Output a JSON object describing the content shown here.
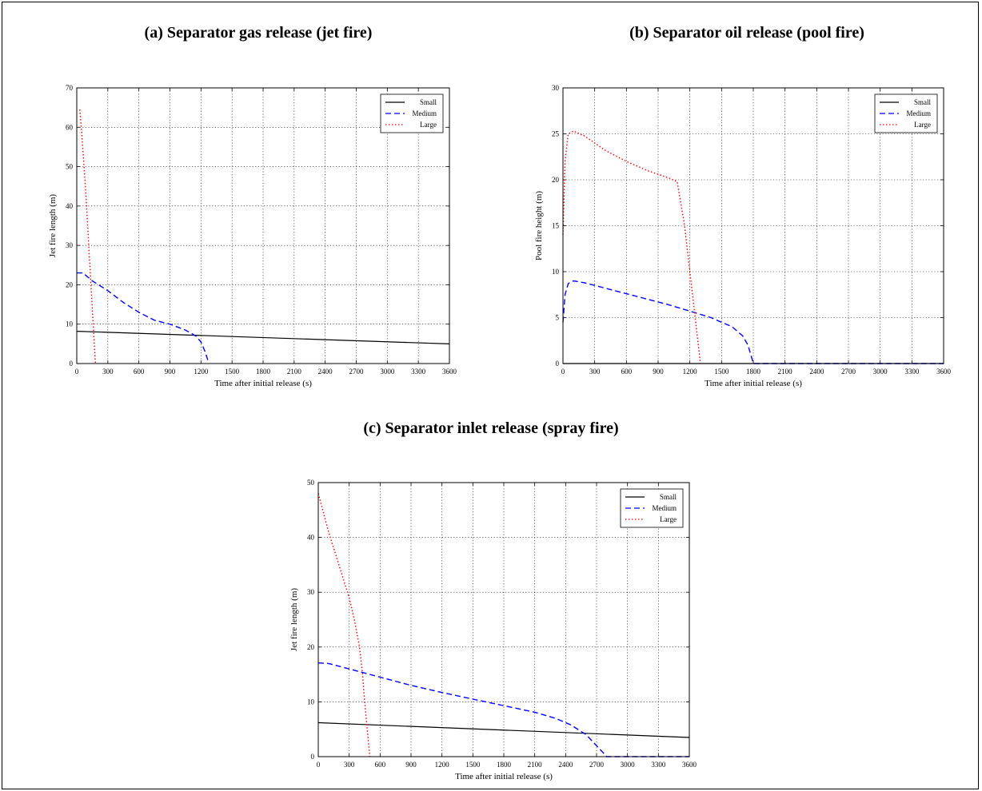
{
  "panels": [
    {
      "title": "(a)  Separator gas release (jet fire)"
    },
    {
      "title": "(b)  Separator oil release (pool fire)"
    },
    {
      "title": "(c)  Separator inlet release (spray fire)"
    }
  ],
  "chart_data": [
    {
      "type": "line",
      "xlabel": "Time after initial release (s)",
      "ylabel": "Jet fire length (m)",
      "xlim": [
        0,
        3600
      ],
      "ylim": [
        0,
        70
      ],
      "xticks": [
        0,
        300,
        600,
        900,
        1200,
        1500,
        1800,
        2100,
        2400,
        2700,
        3000,
        3300,
        3600
      ],
      "yticks": [
        0,
        10,
        20,
        30,
        40,
        50,
        60,
        70
      ],
      "grid": true,
      "legend": "top-right",
      "series": [
        {
          "name": "Small",
          "color": "#000000",
          "style": "solid",
          "x": [
            0,
            3600
          ],
          "y": [
            8.2,
            5.0
          ]
        },
        {
          "name": "Medium",
          "color": "#0000ff",
          "style": "dashed",
          "x": [
            0,
            60,
            150,
            300,
            450,
            600,
            750,
            900,
            1050,
            1150,
            1200,
            1240,
            1270
          ],
          "y": [
            23,
            23,
            21,
            18.5,
            15.5,
            13,
            11,
            10,
            8.5,
            7,
            5.5,
            3,
            0.5
          ]
        },
        {
          "name": "Large",
          "color": "#ff0000",
          "style": "dotted",
          "x": [
            30,
            60,
            90,
            120,
            150,
            180
          ],
          "y": [
            64.5,
            54,
            42,
            28,
            14,
            0
          ]
        }
      ]
    },
    {
      "type": "line",
      "xlabel": "Time after initial release (s)",
      "ylabel": "Pool fire height (m)",
      "xlim": [
        0,
        3600
      ],
      "ylim": [
        0,
        30
      ],
      "xticks": [
        0,
        300,
        600,
        900,
        1200,
        1500,
        1800,
        2100,
        2400,
        2700,
        3000,
        3300,
        3600
      ],
      "yticks": [
        0,
        5,
        10,
        15,
        20,
        25,
        30
      ],
      "grid": true,
      "legend": "top-right",
      "series": [
        {
          "name": "Small",
          "color": "#000000",
          "style": "solid",
          "x": [
            0,
            3600
          ],
          "y": [
            0,
            0
          ]
        },
        {
          "name": "Medium",
          "color": "#0000ff",
          "style": "dashed",
          "x": [
            0,
            20,
            50,
            100,
            200,
            400,
            600,
            800,
            1000,
            1200,
            1400,
            1500,
            1600,
            1700,
            1750,
            1780,
            1800,
            3600
          ],
          "y": [
            4.5,
            7.5,
            8.7,
            9.0,
            8.8,
            8.2,
            7.6,
            7.0,
            6.4,
            5.7,
            5.0,
            4.5,
            4.0,
            3.0,
            2.0,
            0.8,
            0,
            0
          ]
        },
        {
          "name": "Large",
          "color": "#ff0000",
          "style": "dotted",
          "x": [
            0,
            20,
            50,
            100,
            200,
            400,
            600,
            800,
            1000,
            1080,
            1150,
            1200,
            1250,
            1300
          ],
          "y": [
            14,
            22,
            25,
            25.3,
            24.8,
            23.2,
            22.0,
            21.0,
            20.2,
            19.8,
            15,
            10,
            5,
            0
          ]
        }
      ]
    },
    {
      "type": "line",
      "xlabel": "Time after initial release (s)",
      "ylabel": "Jet fire length (m)",
      "xlim": [
        0,
        3600
      ],
      "ylim": [
        0,
        50
      ],
      "xticks": [
        0,
        300,
        600,
        900,
        1200,
        1500,
        1800,
        2100,
        2400,
        2700,
        3000,
        3300,
        3600
      ],
      "yticks": [
        0,
        10,
        20,
        30,
        40,
        50
      ],
      "grid": true,
      "legend": "top-right",
      "series": [
        {
          "name": "Small",
          "color": "#000000",
          "style": "solid",
          "x": [
            0,
            3600
          ],
          "y": [
            6.2,
            3.5
          ]
        },
        {
          "name": "Medium",
          "color": "#0000ff",
          "style": "dashed",
          "x": [
            0,
            100,
            300,
            600,
            900,
            1200,
            1500,
            1800,
            2100,
            2300,
            2450,
            2600,
            2700,
            2800,
            3600
          ],
          "y": [
            17.1,
            17.0,
            16.0,
            14.5,
            13.0,
            11.7,
            10.5,
            9.3,
            8.1,
            7.0,
            5.8,
            4.0,
            2.0,
            0,
            0
          ]
        },
        {
          "name": "Large",
          "color": "#ff0000",
          "style": "dotted",
          "x": [
            0,
            100,
            200,
            300,
            350,
            400,
            430,
            450,
            480,
            500
          ],
          "y": [
            48,
            41,
            35,
            29,
            25,
            20,
            15,
            10,
            4,
            0
          ]
        }
      ]
    }
  ]
}
